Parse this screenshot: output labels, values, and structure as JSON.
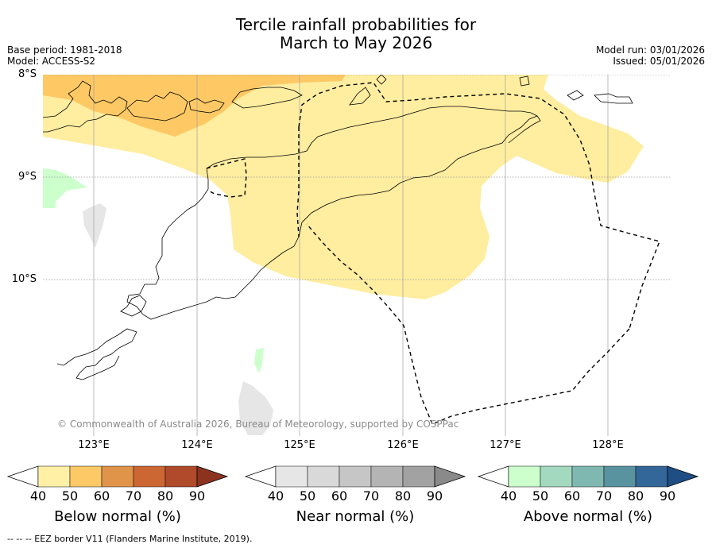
{
  "title_line1": "Tercile rainfall probabilities for",
  "title_line2": "March to May 2026",
  "base_period": "Base period: 1981-2018",
  "model": "Model: ACCESS-S2",
  "model_run": "Model run: 03/01/2026",
  "issued": "Issued: 05/01/2026",
  "lat_labels": [
    "8°S",
    "9°S",
    "10°S"
  ],
  "lon_labels": [
    "123°E",
    "124°E",
    "125°E",
    "126°E",
    "127°E",
    "128°E"
  ],
  "copyright": "© Commonwealth of Australia 2026, Bureau of Meteorology, supported by COSPPac",
  "colorbars": [
    {
      "title": "Below normal (%)",
      "ticks": [
        "40",
        "50",
        "60",
        "70",
        "80",
        "90"
      ],
      "colors": [
        "#fff0a6",
        "#fdc966",
        "#e0944a",
        "#cc6633",
        "#b04a2a",
        "#8c3320"
      ]
    },
    {
      "title": "Near normal (%)",
      "ticks": [
        "40",
        "50",
        "60",
        "70",
        "80",
        "90"
      ],
      "colors": [
        "#e6e6e6",
        "#d9d9d9",
        "#c6c6c6",
        "#b4b4b4",
        "#a2a2a2",
        "#8a8a8a"
      ]
    },
    {
      "title": "Above normal (%)",
      "ticks": [
        "40",
        "50",
        "60",
        "70",
        "80",
        "90"
      ],
      "colors": [
        "#ccffcc",
        "#a3d9bf",
        "#7fb8b0",
        "#5a93a0",
        "#336699",
        "#1f4e85"
      ]
    }
  ],
  "footer_legend": "--  --  -- EEZ border V11 (Flanders Marine Institute, 2019).",
  "fill_colors": {
    "below_40_50": "#ffeda0",
    "below_50_60": "#fec964",
    "near_40_50": "#e6e6e6",
    "above_40_50": "#ccffcc"
  }
}
